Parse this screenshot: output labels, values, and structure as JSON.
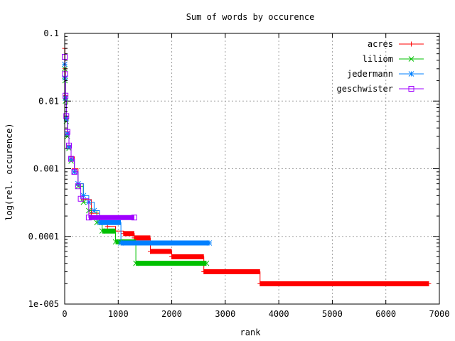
{
  "chart_data": {
    "type": "line",
    "title": "Sum of words by occurence",
    "xlabel": "rank",
    "ylabel": "log(rel. occurence)",
    "xlim": [
      0,
      7000
    ],
    "ylim": [
      1e-05,
      0.1
    ],
    "yscale": "log",
    "grid": true,
    "legend_position": "top-right",
    "x_ticks": [
      {
        "value": 0,
        "label": "0"
      },
      {
        "value": 1000,
        "label": "1000"
      },
      {
        "value": 2000,
        "label": "2000"
      },
      {
        "value": 3000,
        "label": "3000"
      },
      {
        "value": 4000,
        "label": "4000"
      },
      {
        "value": 5000,
        "label": "5000"
      },
      {
        "value": 6000,
        "label": "6000"
      },
      {
        "value": 7000,
        "label": "7000"
      }
    ],
    "y_ticks": [
      {
        "value": 0.1,
        "label": "0.1"
      },
      {
        "value": 0.01,
        "label": "0.01"
      },
      {
        "value": 0.001,
        "label": "0.001"
      },
      {
        "value": 0.0001,
        "label": "0.0001"
      },
      {
        "value": 1e-05,
        "label": "1e-005"
      }
    ],
    "series": [
      {
        "name": "acres",
        "color": "#ff0000",
        "marker": "plus",
        "points": [
          [
            0,
            0.06
          ],
          [
            5,
            0.03
          ],
          [
            15,
            0.012
          ],
          [
            30,
            0.006
          ],
          [
            50,
            0.0035
          ],
          [
            80,
            0.0022
          ],
          [
            120,
            0.0015
          ],
          [
            180,
            0.001
          ],
          [
            250,
            0.0006
          ],
          [
            350,
            0.00035
          ],
          [
            500,
            0.00022
          ],
          [
            650,
            0.00016
          ],
          [
            800,
            0.00014
          ],
          [
            950,
            0.00012
          ],
          [
            1100,
            0.00011
          ],
          [
            1300,
            9.5e-05
          ],
          [
            1600,
            6e-05
          ],
          [
            2000,
            5e-05
          ],
          [
            2600,
            3e-05
          ],
          [
            3650,
            2e-05
          ],
          [
            6800,
            2e-05
          ]
        ]
      },
      {
        "name": "liliom",
        "color": "#00c000",
        "marker": "x",
        "points": [
          [
            0,
            0.03
          ],
          [
            5,
            0.02
          ],
          [
            15,
            0.01
          ],
          [
            30,
            0.005
          ],
          [
            50,
            0.003
          ],
          [
            80,
            0.002
          ],
          [
            120,
            0.0013
          ],
          [
            180,
            0.0009
          ],
          [
            250,
            0.00055
          ],
          [
            350,
            0.00032
          ],
          [
            450,
            0.00024
          ],
          [
            600,
            0.00016
          ],
          [
            700,
            0.00012
          ],
          [
            950,
            8.3e-05
          ],
          [
            1330,
            4e-05
          ],
          [
            2650,
            4e-05
          ]
        ]
      },
      {
        "name": "jedermann",
        "color": "#0080ff",
        "marker": "star",
        "points": [
          [
            0,
            0.035
          ],
          [
            5,
            0.022
          ],
          [
            15,
            0.011
          ],
          [
            30,
            0.0055
          ],
          [
            50,
            0.0033
          ],
          [
            80,
            0.0021
          ],
          [
            120,
            0.0014
          ],
          [
            180,
            0.0009
          ],
          [
            250,
            0.0006
          ],
          [
            350,
            0.0004
          ],
          [
            450,
            0.00032
          ],
          [
            550,
            0.00024
          ],
          [
            650,
            0.00016
          ],
          [
            1050,
            8e-05
          ],
          [
            2700,
            8e-05
          ]
        ]
      },
      {
        "name": "geschwister",
        "color": "#a000ff",
        "marker": "square",
        "points": [
          [
            0,
            0.045
          ],
          [
            5,
            0.025
          ],
          [
            15,
            0.012
          ],
          [
            30,
            0.006
          ],
          [
            50,
            0.0035
          ],
          [
            80,
            0.0022
          ],
          [
            120,
            0.0014
          ],
          [
            180,
            0.0009
          ],
          [
            250,
            0.00055
          ],
          [
            300,
            0.00036
          ],
          [
            450,
            0.00019
          ],
          [
            1300,
            0.00019
          ]
        ]
      }
    ]
  }
}
